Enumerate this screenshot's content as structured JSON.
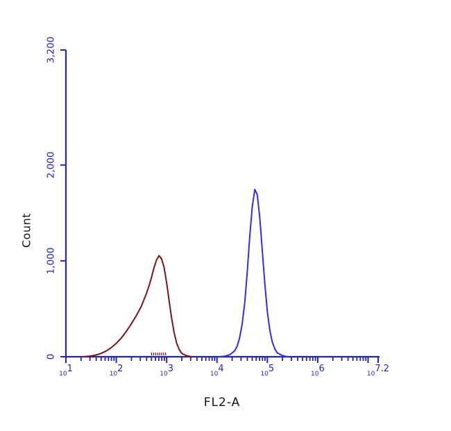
{
  "chart_data": {
    "type": "line",
    "description": "Flow cytometry overlay histogram with two populations",
    "title": "",
    "xlabel": "FL2-A",
    "ylabel": "Count",
    "x_scale": "log10",
    "x_range_log10": [
      1,
      7.2
    ],
    "ylim": [
      0,
      3200
    ],
    "grid": false,
    "legend": "none",
    "background": "#ffffff",
    "axis_color": "#2222cc",
    "tick_label_color": "#2222cc",
    "text_color": "#111111",
    "y_ticks": [
      {
        "value": 0,
        "label": "0"
      },
      {
        "value": 1000,
        "label": "1,000"
      },
      {
        "value": 2000,
        "label": "2,000"
      },
      {
        "value": 3200,
        "label": "3,200"
      }
    ],
    "x_major_ticks_log10": [
      1,
      2,
      3,
      4,
      5,
      6,
      7,
      7.2
    ],
    "x_tick_labels": [
      {
        "log10": 1,
        "base": "10",
        "exp": "1"
      },
      {
        "log10": 2,
        "base": "10",
        "exp": "2"
      },
      {
        "log10": 3,
        "base": "10",
        "exp": "3"
      },
      {
        "log10": 4,
        "base": "10",
        "exp": "4"
      },
      {
        "log10": 5,
        "base": "10",
        "exp": "5"
      },
      {
        "log10": 6,
        "base": "10",
        "exp": "6"
      },
      {
        "log10": 7.2,
        "base": "10",
        "exp": "7.2"
      }
    ],
    "series": [
      {
        "name": "red-population",
        "color": "#7b1416",
        "peak": {
          "log10_x": 2.85,
          "count": 1055
        },
        "points": [
          [
            1.35,
            0
          ],
          [
            1.5,
            8
          ],
          [
            1.6,
            18
          ],
          [
            1.7,
            35
          ],
          [
            1.8,
            60
          ],
          [
            1.9,
            95
          ],
          [
            2.0,
            140
          ],
          [
            2.1,
            195
          ],
          [
            2.2,
            265
          ],
          [
            2.3,
            345
          ],
          [
            2.4,
            430
          ],
          [
            2.5,
            530
          ],
          [
            2.6,
            660
          ],
          [
            2.65,
            740
          ],
          [
            2.7,
            830
          ],
          [
            2.75,
            930
          ],
          [
            2.8,
            1010
          ],
          [
            2.85,
            1055
          ],
          [
            2.9,
            1020
          ],
          [
            2.95,
            930
          ],
          [
            3.0,
            770
          ],
          [
            3.05,
            580
          ],
          [
            3.1,
            400
          ],
          [
            3.15,
            250
          ],
          [
            3.2,
            140
          ],
          [
            3.25,
            75
          ],
          [
            3.3,
            35
          ],
          [
            3.4,
            10
          ],
          [
            3.5,
            0
          ]
        ]
      },
      {
        "name": "blue-population",
        "color": "#2b2bfe",
        "peak": {
          "log10_x": 4.75,
          "count": 1745
        },
        "points": [
          [
            4.05,
            0
          ],
          [
            4.15,
            5
          ],
          [
            4.25,
            20
          ],
          [
            4.35,
            60
          ],
          [
            4.4,
            110
          ],
          [
            4.45,
            200
          ],
          [
            4.5,
            340
          ],
          [
            4.55,
            560
          ],
          [
            4.6,
            880
          ],
          [
            4.65,
            1250
          ],
          [
            4.7,
            1560
          ],
          [
            4.75,
            1745
          ],
          [
            4.8,
            1690
          ],
          [
            4.85,
            1450
          ],
          [
            4.9,
            1100
          ],
          [
            4.95,
            760
          ],
          [
            5.0,
            470
          ],
          [
            5.05,
            270
          ],
          [
            5.1,
            150
          ],
          [
            5.15,
            80
          ],
          [
            5.2,
            40
          ],
          [
            5.3,
            12
          ],
          [
            5.4,
            0
          ]
        ]
      }
    ],
    "baseline_marks": {
      "color": "#7b1416",
      "log10_x": [
        2.7,
        2.74,
        2.78,
        2.82,
        2.86,
        2.9,
        2.94,
        2.98
      ]
    }
  }
}
